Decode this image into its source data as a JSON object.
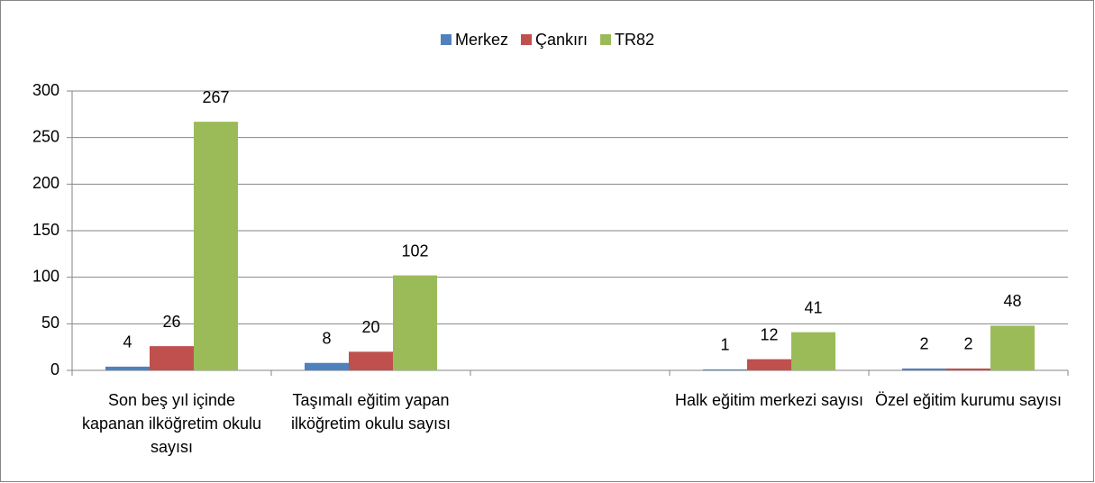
{
  "chart_data": {
    "type": "bar",
    "categories": [
      "Son beş yıl içinde kapanan ilköğretim okulu sayısı",
      "Taşımalı eğitim yapan ilköğretim okulu sayısı",
      null,
      "Halk eğitim merkezi sayısı",
      "Özel eğitim kurumu sayısı"
    ],
    "series": [
      {
        "name": "Merkez",
        "color": "#4f81bd",
        "values": [
          4,
          8,
          null,
          1,
          2
        ]
      },
      {
        "name": "Çankırı",
        "color": "#c0504d",
        "values": [
          26,
          20,
          null,
          12,
          2
        ]
      },
      {
        "name": "TR82",
        "color": "#9bbb59",
        "values": [
          267,
          102,
          null,
          41,
          48
        ]
      }
    ],
    "ylim": [
      0,
      300
    ],
    "yticks": [
      0,
      50,
      100,
      150,
      200,
      250,
      300
    ],
    "grid": true,
    "legend": "top"
  }
}
